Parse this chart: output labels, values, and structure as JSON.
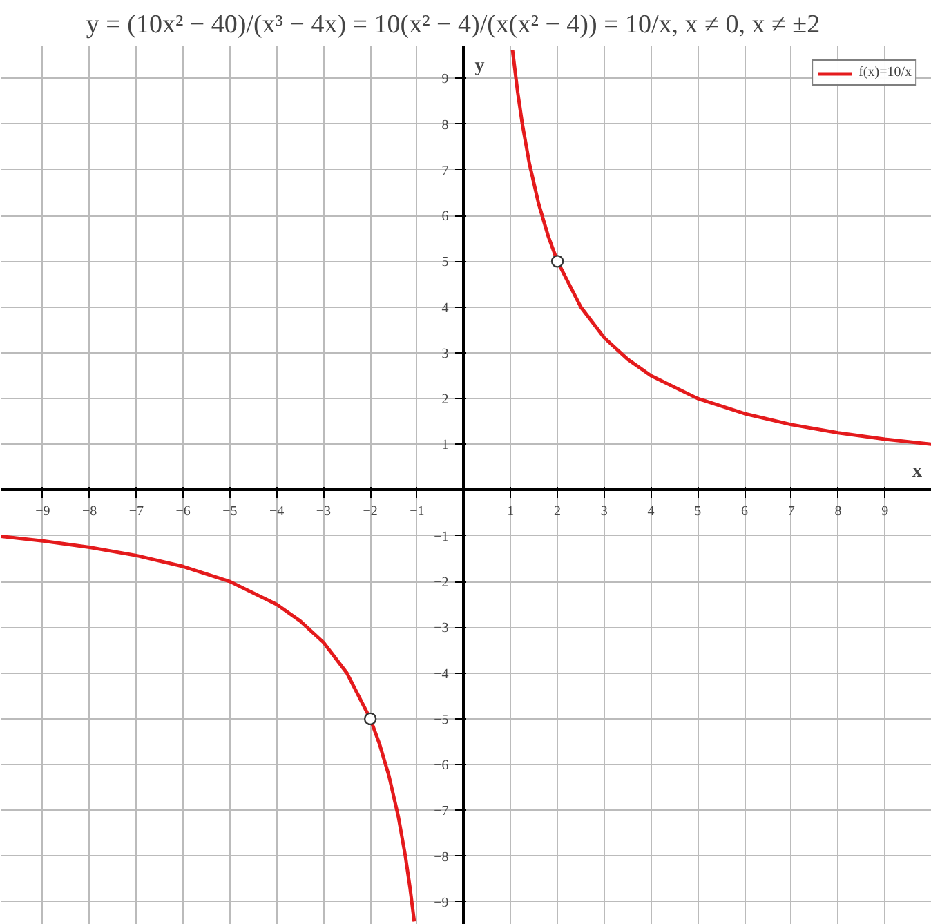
{
  "chart_data": {
    "type": "line",
    "title": "y = (10x² − 40)/(x³ − 4x) = 10(x² − 4)/(x(x² − 4)) = 10/x,   x ≠ 0,   x ≠ ±2",
    "xlabel": "x",
    "ylabel": "y",
    "xlim": [
      -9.9,
      10
    ],
    "ylim": [
      -9.5,
      9.7
    ],
    "xticks": [
      -9,
      -8,
      -7,
      -6,
      -5,
      -4,
      -3,
      -2,
      -1,
      1,
      2,
      3,
      4,
      5,
      6,
      7,
      8,
      9
    ],
    "yticks": [
      -9,
      -8,
      -7,
      -6,
      -5,
      -4,
      -3,
      -2,
      -1,
      1,
      2,
      3,
      4,
      5,
      6,
      7,
      8,
      9
    ],
    "grid": true,
    "legend": "top right",
    "series": [
      {
        "name": "f(x)=10/x",
        "color": "#e41a1c",
        "marker": "none",
        "x": [
          -9.9,
          -9,
          -8,
          -7,
          -6,
          -5,
          -4,
          -3.5,
          -3,
          -2.5,
          -2,
          -1.8,
          -1.6,
          -1.4,
          -1.25,
          -1.15,
          -1.06,
          0,
          1.04,
          1.15,
          1.25,
          1.4,
          1.6,
          1.8,
          2,
          2.5,
          3,
          3.5,
          4,
          5,
          6,
          7,
          8,
          9,
          10
        ],
        "values": [
          -1.01,
          -1.11,
          -1.25,
          -1.43,
          -1.67,
          -2,
          -2.5,
          -2.86,
          -3.33,
          -4,
          -5,
          -5.56,
          -6.25,
          -7.14,
          -8,
          -8.7,
          -9.43,
          null,
          9.62,
          8.7,
          8,
          7.14,
          6.25,
          5.56,
          5,
          4,
          3.33,
          2.86,
          2.5,
          2,
          1.67,
          1.43,
          1.25,
          1.11,
          1
        ]
      },
      {
        "color": "#333333",
        "type": "scatter",
        "marker": "circle",
        "x": [
          -2,
          2
        ],
        "values": [
          -5,
          5
        ]
      }
    ]
  }
}
